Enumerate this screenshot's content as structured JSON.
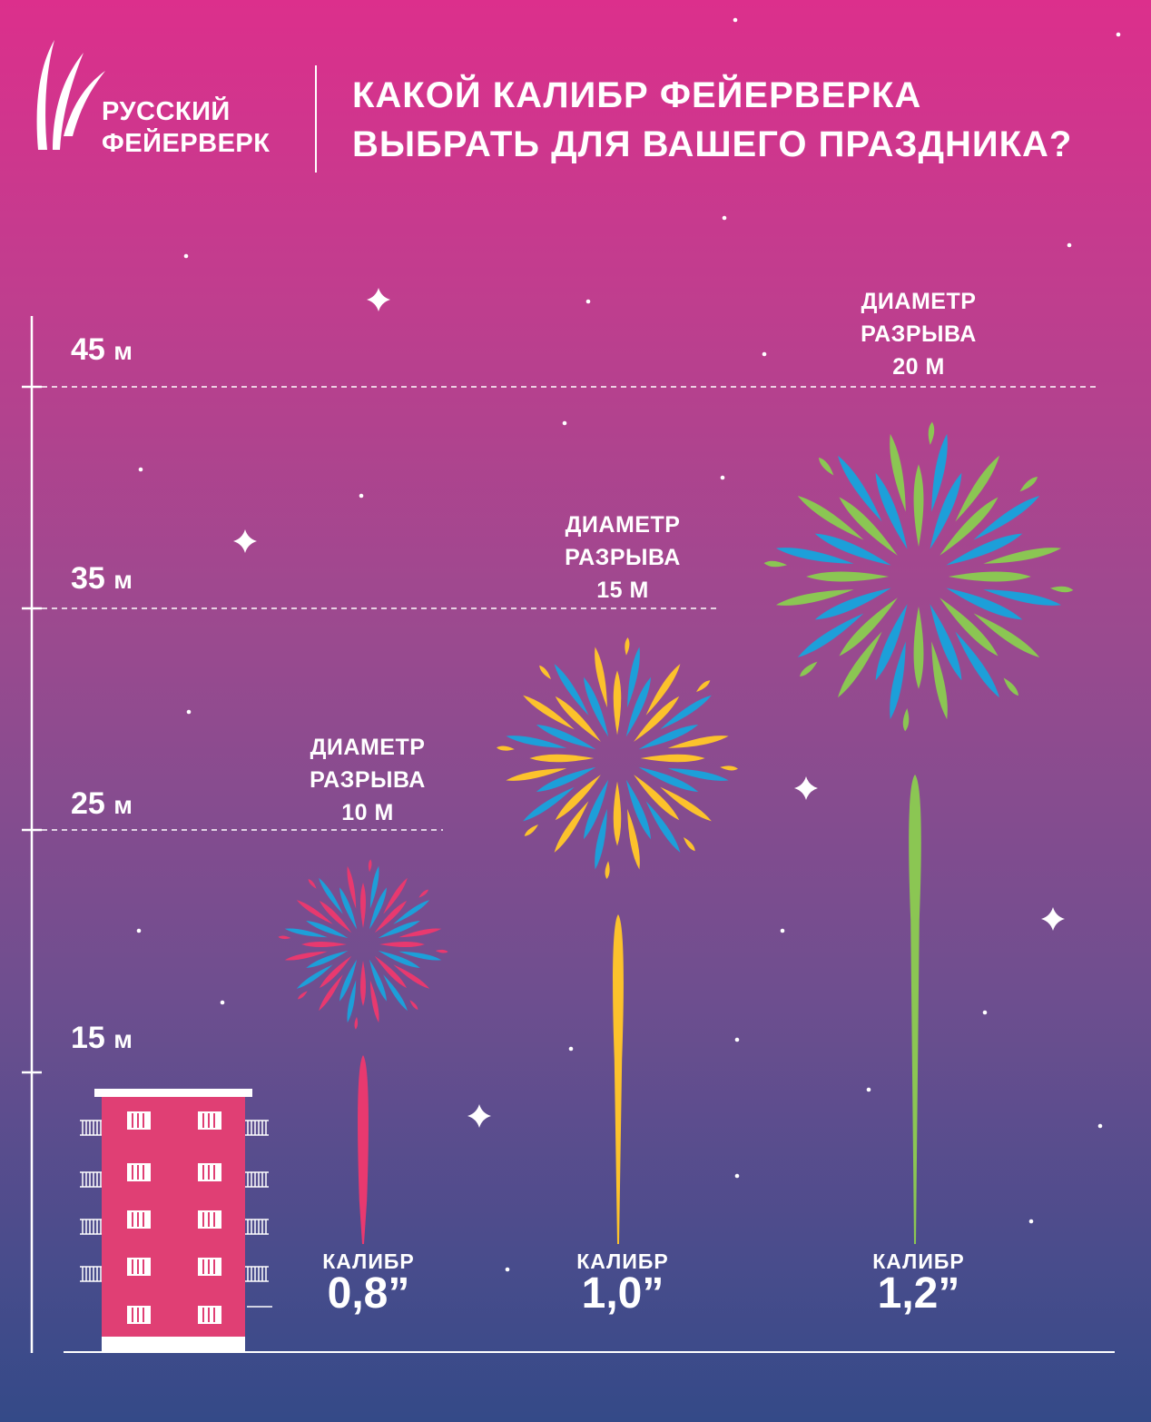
{
  "brand": {
    "line1": "РУССКИЙ",
    "line2": "ФЕЙЕРВЕРК"
  },
  "title": {
    "line1": "КАКОЙ КАЛИБР ФЕЙЕРВЕРКА",
    "line2": "ВЫБРАТЬ ДЛЯ ВАШЕГО ПРАЗДНИКА?"
  },
  "height_scale": [
    {
      "value": "45",
      "unit": "м"
    },
    {
      "value": "35",
      "unit": "м"
    },
    {
      "value": "25",
      "unit": "м"
    },
    {
      "value": "15",
      "unit": "м"
    }
  ],
  "fireworks": [
    {
      "diam_line1": "ДИАМЕТР",
      "diam_line2": "РАЗРЫВА",
      "diameter": "10 М",
      "caliber_label": "КАЛИБР",
      "caliber": "0,8”",
      "colors": [
        "#e8396f",
        "#1d9fd9"
      ],
      "trail_color": "#e8396f"
    },
    {
      "diam_line1": "ДИАМЕТР",
      "diam_line2": "РАЗРЫВА",
      "diameter": "15 М",
      "caliber_label": "КАЛИБР",
      "caliber": "1,0”",
      "colors": [
        "#fcc22c",
        "#1d9fd9"
      ],
      "trail_color": "#fcc22c"
    },
    {
      "diam_line1": "ДИАМЕТР",
      "diam_line2": "РАЗРЫВА",
      "diameter": "20 М",
      "caliber_label": "КАЛИБР",
      "caliber": "1,2”",
      "colors": [
        "#8bc653",
        "#1d9fd9"
      ],
      "trail_color": "#8bc653"
    }
  ],
  "colors": {
    "building": "#e03f74",
    "window": "#ffffff"
  }
}
